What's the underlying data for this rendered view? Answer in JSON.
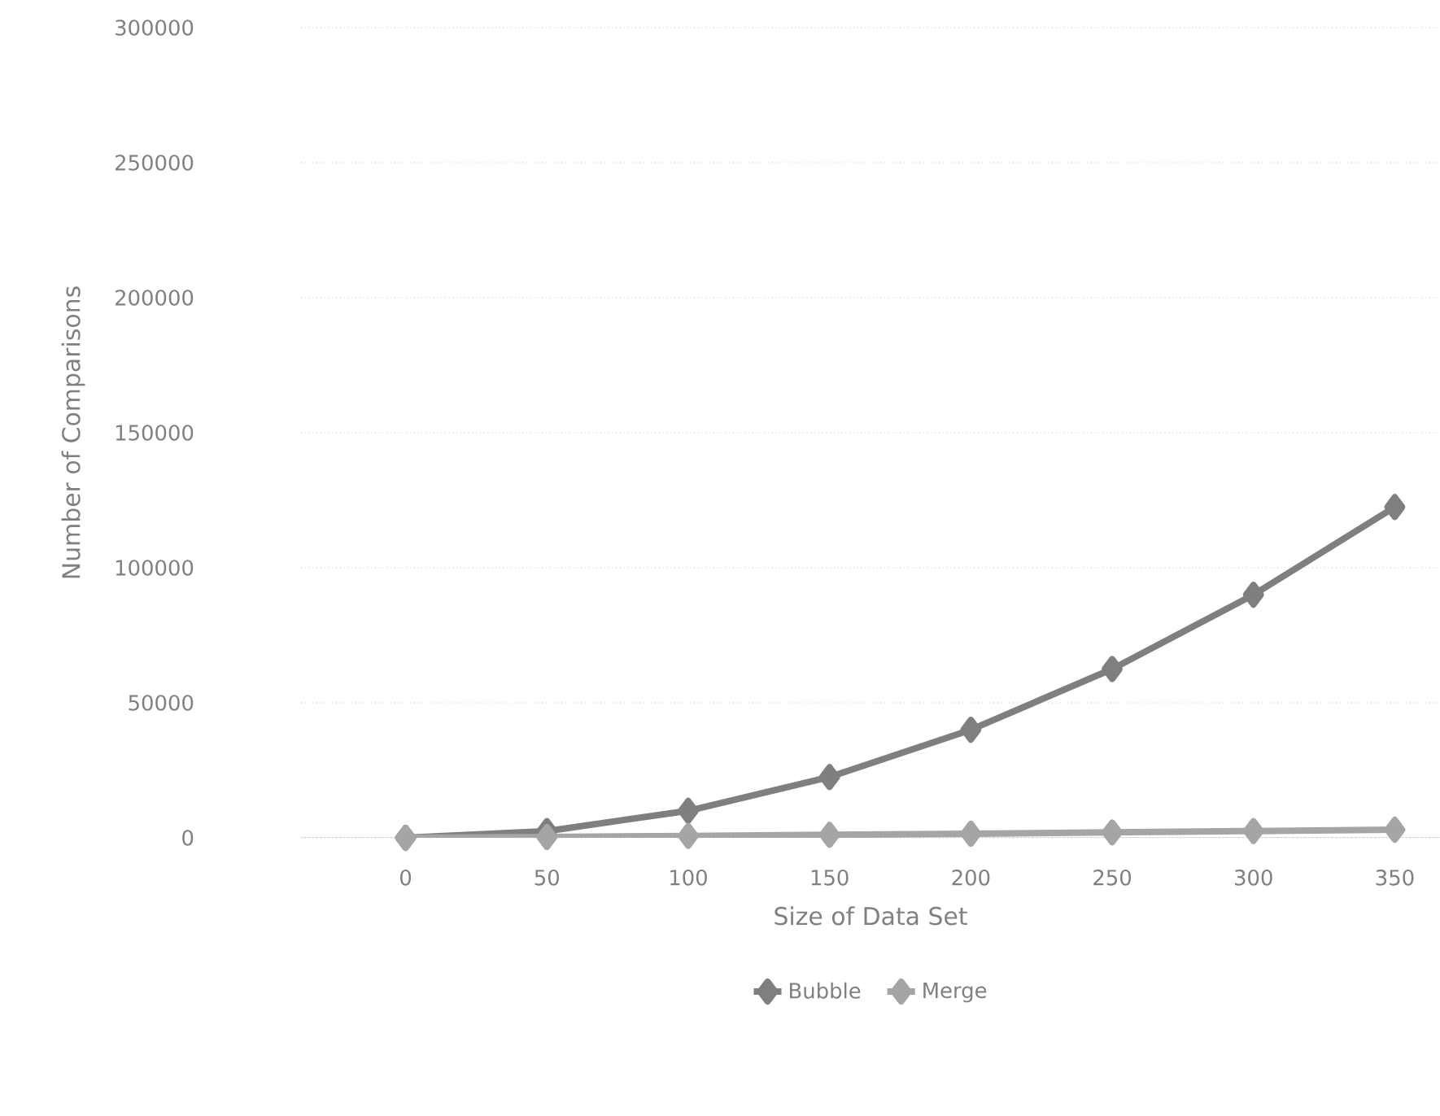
{
  "chart_data": {
    "type": "line",
    "xlabel": "Size of Data Set",
    "ylabel": "Number of Comparisons",
    "x": [
      0,
      50,
      100,
      150,
      200,
      250,
      300,
      350
    ],
    "series": [
      {
        "name": "Bubble",
        "color": "#7f7f7f",
        "values": [
          0,
          2500,
          10000,
          22500,
          40000,
          62500,
          90000,
          122500
        ]
      },
      {
        "name": "Merge",
        "color": "#a5a5a5",
        "values": [
          0,
          300,
          700,
          1100,
          1500,
          2000,
          2500,
          3000
        ]
      }
    ],
    "xlim": [
      -37,
      366
    ],
    "xticks": [
      0,
      50,
      100,
      150,
      200,
      250,
      300,
      350
    ],
    "ylim": [
      0,
      300000
    ],
    "yticks": [
      0,
      50000,
      100000,
      150000,
      200000,
      250000,
      300000
    ],
    "grid": "y",
    "legend": "bottom",
    "marker": "diamond",
    "line_style": "solid"
  }
}
